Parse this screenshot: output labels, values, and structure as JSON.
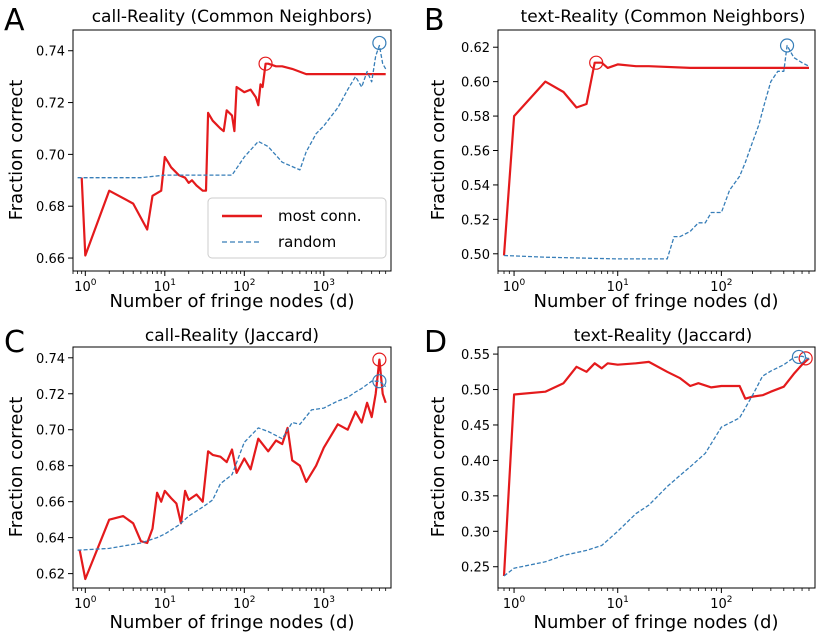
{
  "figure": {
    "panels": [
      {
        "letter": "A",
        "title": "call-Reality (Common Neighbors)",
        "xlabel": "Number of fringe nodes (d)",
        "ylabel": "Fraction correct",
        "xscale": "log",
        "xlim": [
          0.7,
          7000
        ],
        "ylim": [
          0.655,
          0.748
        ],
        "xticks": [
          {
            "base": "10",
            "exp": "0",
            "v": 1
          },
          {
            "base": "10",
            "exp": "1",
            "v": 10
          },
          {
            "base": "10",
            "exp": "2",
            "v": 100
          },
          {
            "base": "10",
            "exp": "3",
            "v": 1000
          }
        ],
        "yticks": [
          "0.66",
          "0.68",
          "0.70",
          "0.72",
          "0.74"
        ],
        "legend": true
      },
      {
        "letter": "B",
        "title": "text-Reality (Common Neighbors)",
        "xlabel": "Number of fringe nodes (d)",
        "ylabel": "Fraction correct",
        "xscale": "log",
        "xlim": [
          0.7,
          800
        ],
        "ylim": [
          0.49,
          0.63
        ],
        "xticks": [
          {
            "base": "10",
            "exp": "0",
            "v": 1
          },
          {
            "base": "10",
            "exp": "1",
            "v": 10
          },
          {
            "base": "10",
            "exp": "2",
            "v": 100
          }
        ],
        "yticks": [
          "0.50",
          "0.52",
          "0.54",
          "0.56",
          "0.58",
          "0.60",
          "0.62"
        ],
        "legend": false
      },
      {
        "letter": "C",
        "title": "call-Reality (Jaccard)",
        "xlabel": "Number of fringe nodes (d)",
        "ylabel": "Fraction correct",
        "xscale": "log",
        "xlim": [
          0.7,
          7000
        ],
        "ylim": [
          0.612,
          0.746
        ],
        "xticks": [
          {
            "base": "10",
            "exp": "0",
            "v": 1
          },
          {
            "base": "10",
            "exp": "1",
            "v": 10
          },
          {
            "base": "10",
            "exp": "2",
            "v": 100
          },
          {
            "base": "10",
            "exp": "3",
            "v": 1000
          }
        ],
        "yticks": [
          "0.62",
          "0.64",
          "0.66",
          "0.68",
          "0.70",
          "0.72",
          "0.74"
        ],
        "legend": false
      },
      {
        "letter": "D",
        "title": "text-Reality (Jaccard)",
        "xlabel": "Number of fringe nodes (d)",
        "ylabel": "Fraction correct",
        "xscale": "log",
        "xlim": [
          0.7,
          800
        ],
        "ylim": [
          0.22,
          0.56
        ],
        "xticks": [
          {
            "base": "10",
            "exp": "0",
            "v": 1
          },
          {
            "base": "10",
            "exp": "1",
            "v": 10
          },
          {
            "base": "10",
            "exp": "2",
            "v": 100
          }
        ],
        "yticks": [
          "0.25",
          "0.30",
          "0.35",
          "0.40",
          "0.45",
          "0.50",
          "0.55"
        ],
        "legend": false
      }
    ]
  },
  "legend": {
    "most_conn_label": "most conn.",
    "random_label": "random"
  },
  "colors": {
    "most_conn": "#e41a1c",
    "random": "#377eb8"
  },
  "chart_data": [
    {
      "type": "line",
      "panel": "A",
      "title": "call-Reality (Common Neighbors)",
      "xlabel": "Number of fringe nodes (d)",
      "ylabel": "Fraction correct",
      "xscale": "log",
      "series": [
        {
          "name": "most conn.",
          "style": "solid",
          "x": [
            0.9,
            1.0,
            2.0,
            4.0,
            6.0,
            7.0,
            9.0,
            10.0,
            11.0,
            12.0,
            15.0,
            18.0,
            20.0,
            22.0,
            25.0,
            30.0,
            33.0,
            35.0,
            40.0,
            50.0,
            55.0,
            60.0,
            70.0,
            75.0,
            80.0,
            100.0,
            120.0,
            140.0,
            150.0,
            160.0,
            170.0,
            185.0,
            200.0,
            250.0,
            300.0,
            400.0,
            600.0,
            1000.0,
            6000.0
          ],
          "y": [
            0.691,
            0.661,
            0.686,
            0.681,
            0.671,
            0.684,
            0.686,
            0.699,
            0.697,
            0.695,
            0.692,
            0.691,
            0.689,
            0.69,
            0.688,
            0.686,
            0.686,
            0.716,
            0.713,
            0.71,
            0.709,
            0.717,
            0.715,
            0.709,
            0.726,
            0.724,
            0.725,
            0.722,
            0.719,
            0.727,
            0.726,
            0.735,
            0.735,
            0.734,
            0.734,
            0.733,
            0.731,
            0.731,
            0.731
          ]
        },
        {
          "name": "random",
          "style": "dashed",
          "x": [
            0.8,
            5.0,
            10.0,
            30.0,
            70.0,
            100.0,
            150.0,
            200.0,
            300.0,
            500.0,
            600.0,
            800.0,
            1000.0,
            1500.0,
            2000.0,
            2500.0,
            3000.0,
            3500.0,
            4000.0,
            4500.0,
            5000.0,
            5500.0,
            6000.0
          ],
          "y": [
            0.691,
            0.691,
            0.692,
            0.692,
            0.692,
            0.699,
            0.705,
            0.703,
            0.697,
            0.694,
            0.701,
            0.708,
            0.711,
            0.718,
            0.725,
            0.73,
            0.726,
            0.732,
            0.728,
            0.738,
            0.742,
            0.735,
            0.733
          ]
        }
      ],
      "annotations": [
        {
          "series": "most conn.",
          "x": 185,
          "y": 0.735,
          "mark": "circle"
        },
        {
          "series": "random",
          "x": 5000,
          "y": 0.743,
          "mark": "circle"
        }
      ]
    },
    {
      "type": "line",
      "panel": "B",
      "title": "text-Reality (Common Neighbors)",
      "xlabel": "Number of fringe nodes (d)",
      "ylabel": "Fraction correct",
      "xscale": "log",
      "series": [
        {
          "name": "most conn.",
          "style": "solid",
          "x": [
            0.8,
            1.0,
            2.0,
            3.0,
            4.0,
            5.0,
            6.0,
            7.0,
            8.0,
            10.0,
            15.0,
            20.0,
            50.0,
            100.0,
            300.0,
            700.0
          ],
          "y": [
            0.499,
            0.58,
            0.6,
            0.594,
            0.585,
            0.587,
            0.611,
            0.611,
            0.608,
            0.61,
            0.609,
            0.609,
            0.608,
            0.608,
            0.608,
            0.608
          ]
        },
        {
          "name": "random",
          "style": "dashed",
          "x": [
            0.8,
            2.0,
            10.0,
            30.0,
            35.0,
            40.0,
            50.0,
            60.0,
            70.0,
            80.0,
            90.0,
            100.0,
            120.0,
            150.0,
            170.0,
            200.0,
            230.0,
            260.0,
            300.0,
            350.0,
            400.0,
            430.0,
            500.0,
            600.0,
            700.0
          ],
          "y": [
            0.499,
            0.498,
            0.497,
            0.497,
            0.51,
            0.51,
            0.513,
            0.518,
            0.518,
            0.524,
            0.524,
            0.524,
            0.537,
            0.545,
            0.553,
            0.565,
            0.575,
            0.587,
            0.6,
            0.606,
            0.606,
            0.621,
            0.614,
            0.611,
            0.609
          ]
        }
      ],
      "annotations": [
        {
          "series": "most conn.",
          "x": 6.2,
          "y": 0.611,
          "mark": "circle"
        },
        {
          "series": "random",
          "x": 430,
          "y": 0.621,
          "mark": "circle"
        }
      ]
    },
    {
      "type": "line",
      "panel": "C",
      "title": "call-Reality (Jaccard)",
      "xlabel": "Number of fringe nodes (d)",
      "ylabel": "Fraction correct",
      "xscale": "log",
      "series": [
        {
          "name": "most conn.",
          "style": "solid",
          "x": [
            0.85,
            1.0,
            2.0,
            3.0,
            4.0,
            5.0,
            6.0,
            7.0,
            8.0,
            9.0,
            10.0,
            12.0,
            14.0,
            16.0,
            18.0,
            20.0,
            25.0,
            30.0,
            35.0,
            40.0,
            50.0,
            60.0,
            70.0,
            80.0,
            100.0,
            120.0,
            150.0,
            200.0,
            250.0,
            300.0,
            350.0,
            400.0,
            500.0,
            600.0,
            800.0,
            1000.0,
            1500.0,
            2000.0,
            2500.0,
            3000.0,
            3500.0,
            4000.0,
            4500.0,
            5000.0,
            5500.0,
            6000.0
          ],
          "y": [
            0.633,
            0.617,
            0.65,
            0.652,
            0.648,
            0.638,
            0.637,
            0.645,
            0.665,
            0.66,
            0.666,
            0.662,
            0.659,
            0.648,
            0.666,
            0.661,
            0.664,
            0.66,
            0.688,
            0.686,
            0.685,
            0.682,
            0.689,
            0.676,
            0.684,
            0.678,
            0.695,
            0.688,
            0.694,
            0.692,
            0.701,
            0.683,
            0.68,
            0.671,
            0.68,
            0.69,
            0.703,
            0.7,
            0.71,
            0.704,
            0.715,
            0.707,
            0.72,
            0.739,
            0.72,
            0.715
          ]
        },
        {
          "name": "random",
          "style": "dashed",
          "x": [
            0.8,
            2.0,
            5.0,
            8.0,
            10.0,
            15.0,
            20.0,
            30.0,
            40.0,
            50.0,
            70.0,
            100.0,
            150.0,
            200.0,
            300.0,
            400.0,
            500.0,
            700.0,
            1000.0,
            1500.0,
            2000.0,
            2500.0,
            3000.0,
            4000.0,
            5000.0,
            6000.0
          ],
          "y": [
            0.633,
            0.634,
            0.637,
            0.64,
            0.642,
            0.647,
            0.652,
            0.657,
            0.661,
            0.67,
            0.675,
            0.693,
            0.701,
            0.699,
            0.695,
            0.704,
            0.703,
            0.711,
            0.712,
            0.716,
            0.718,
            0.721,
            0.723,
            0.727,
            0.727,
            0.724
          ]
        }
      ],
      "annotations": [
        {
          "series": "most conn.",
          "x": 5000,
          "y": 0.739,
          "mark": "circle"
        },
        {
          "series": "random",
          "x": 5000,
          "y": 0.727,
          "mark": "circle"
        }
      ]
    },
    {
      "type": "line",
      "panel": "D",
      "title": "text-Reality (Jaccard)",
      "xlabel": "Number of fringe nodes (d)",
      "ylabel": "Fraction correct",
      "xscale": "log",
      "series": [
        {
          "name": "most conn.",
          "style": "solid",
          "x": [
            0.8,
            1.0,
            2.0,
            3.0,
            4.0,
            5.0,
            6.0,
            7.0,
            8.0,
            10.0,
            15.0,
            20.0,
            30.0,
            40.0,
            50.0,
            60.0,
            80.0,
            100.0,
            150.0,
            170.0,
            200.0,
            250.0,
            300.0,
            400.0,
            500.0,
            600.0,
            700.0
          ],
          "y": [
            0.237,
            0.493,
            0.497,
            0.509,
            0.532,
            0.525,
            0.537,
            0.53,
            0.537,
            0.535,
            0.537,
            0.539,
            0.525,
            0.516,
            0.505,
            0.509,
            0.503,
            0.505,
            0.505,
            0.487,
            0.49,
            0.492,
            0.497,
            0.504,
            0.522,
            0.535,
            0.544
          ]
        },
        {
          "name": "random",
          "style": "dashed",
          "x": [
            0.8,
            1.0,
            2.0,
            3.0,
            5.0,
            7.0,
            10.0,
            15.0,
            20.0,
            30.0,
            40.0,
            50.0,
            70.0,
            100.0,
            150.0,
            200.0,
            250.0,
            300.0,
            400.0,
            500.0,
            600.0,
            700.0
          ],
          "y": [
            0.237,
            0.248,
            0.257,
            0.266,
            0.273,
            0.28,
            0.3,
            0.325,
            0.337,
            0.363,
            0.379,
            0.391,
            0.41,
            0.447,
            0.46,
            0.492,
            0.519,
            0.526,
            0.535,
            0.545,
            0.547,
            0.543
          ]
        }
      ],
      "annotations": [
        {
          "series": "most conn.",
          "x": 650,
          "y": 0.544,
          "mark": "circle"
        },
        {
          "series": "random",
          "x": 560,
          "y": 0.546,
          "mark": "circle"
        }
      ]
    }
  ]
}
